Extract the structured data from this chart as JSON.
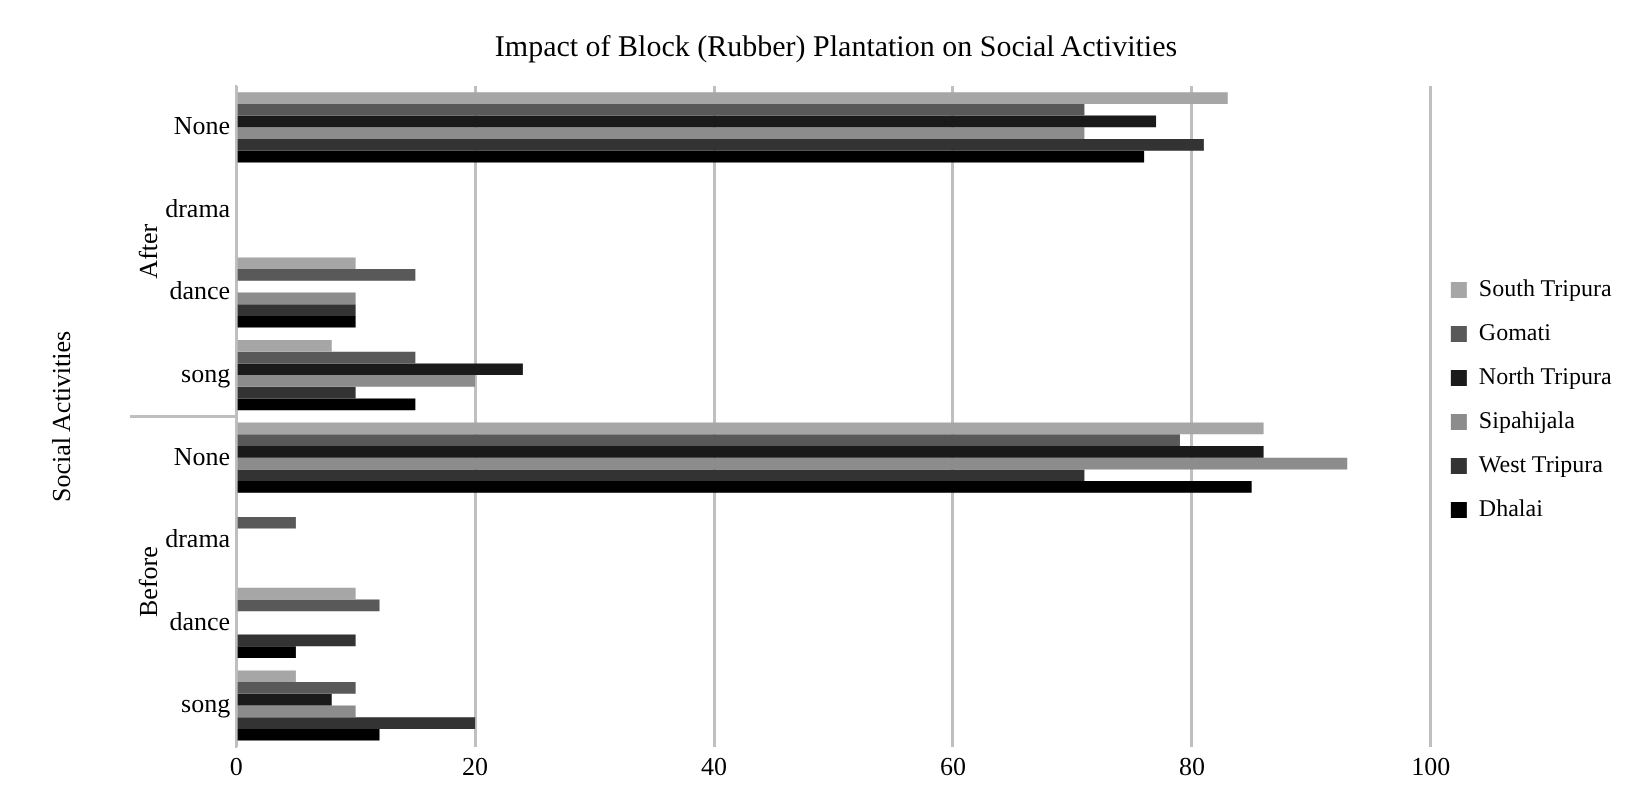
{
  "chart_data": {
    "type": "bar",
    "orientation": "horizontal",
    "title": "Impact of Block (Rubber) Plantation on Social Activities",
    "ylabel": "Social Activities",
    "categories": [
      "None",
      "drama",
      "dance",
      "song",
      "None",
      "drama",
      "dance",
      "song"
    ],
    "annotations": [
      "After",
      "Before"
    ],
    "series": [
      {
        "name": "South Tripura",
        "color": "#a6a6a6",
        "values": [
          83,
          0,
          10,
          8,
          86,
          0,
          10,
          5
        ]
      },
      {
        "name": "Gomati",
        "color": "#595959",
        "values": [
          71,
          0,
          15,
          15,
          79,
          5,
          12,
          10
        ]
      },
      {
        "name": "North Tripura",
        "color": "#1a1a1a",
        "values": [
          77,
          0,
          0,
          24,
          86,
          0,
          0,
          8
        ]
      },
      {
        "name": "Sipahijala",
        "color": "#8c8c8c",
        "values": [
          71,
          0,
          10,
          20,
          93,
          0,
          0,
          10
        ]
      },
      {
        "name": "West Tripura",
        "color": "#333333",
        "values": [
          81,
          0,
          10,
          10,
          71,
          0,
          10,
          20
        ]
      },
      {
        "name": "Dhalai",
        "color": "#000000",
        "values": [
          76,
          0,
          10,
          15,
          85,
          0,
          5,
          12
        ]
      }
    ],
    "xlim": [
      0,
      100
    ],
    "xticks": [
      0,
      20,
      40,
      60,
      80,
      100
    ],
    "grid": "x",
    "legend": "right"
  }
}
